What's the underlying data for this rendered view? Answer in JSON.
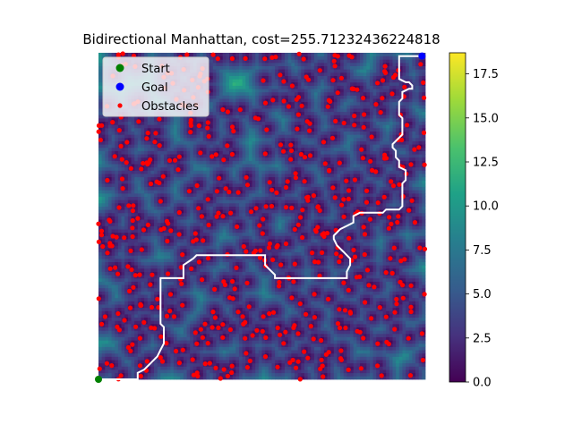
{
  "chart_data": {
    "type": "heatmap",
    "title": "Bidirectional Manhattan, cost=255.71232436224818",
    "xlabel": "",
    "ylabel": "",
    "grid": false,
    "legend_position": "top-left",
    "legend": [
      {
        "label": "Start",
        "color": "#008000",
        "marker": "circle"
      },
      {
        "label": "Goal",
        "color": "#0000ff",
        "marker": "circle"
      },
      {
        "label": "Obstacles",
        "color": "#ff0000",
        "marker": "small-circle"
      }
    ],
    "colorbar": {
      "colormap": "viridis",
      "range": [
        0.0,
        18.7
      ],
      "ticks": [
        0.0,
        2.5,
        5.0,
        7.5,
        10.0,
        12.5,
        15.0,
        17.5
      ],
      "tick_labels": [
        "0.0",
        "2.5",
        "5.0",
        "7.5",
        "10.0",
        "12.5",
        "15.0",
        "17.5"
      ]
    },
    "grid_size": [
      100,
      100
    ],
    "start": [
      0,
      0
    ],
    "goal": [
      99,
      99
    ],
    "path_color": "#ffffff",
    "path": [
      [
        0,
        0
      ],
      [
        12,
        0
      ],
      [
        12,
        2
      ],
      [
        14,
        3
      ],
      [
        16,
        5
      ],
      [
        18,
        7
      ],
      [
        19,
        9
      ],
      [
        20,
        11
      ],
      [
        20,
        16
      ],
      [
        19,
        17
      ],
      [
        19,
        31
      ],
      [
        26,
        31
      ],
      [
        26,
        35
      ],
      [
        29,
        37
      ],
      [
        30,
        38
      ],
      [
        51,
        38
      ],
      [
        51,
        35
      ],
      [
        53,
        33
      ],
      [
        54,
        32
      ],
      [
        54,
        31
      ],
      [
        76,
        31
      ],
      [
        76,
        33
      ],
      [
        77,
        35
      ],
      [
        77,
        37
      ],
      [
        76,
        38
      ],
      [
        75,
        39
      ],
      [
        73,
        41
      ],
      [
        72,
        43
      ],
      [
        72,
        44
      ],
      [
        73,
        45
      ],
      [
        74,
        46
      ],
      [
        76,
        47
      ],
      [
        78,
        48
      ],
      [
        78,
        50
      ],
      [
        80,
        51
      ],
      [
        81,
        51
      ],
      [
        87,
        51
      ],
      [
        88,
        52
      ],
      [
        92,
        52
      ],
      [
        93,
        53
      ],
      [
        93,
        60
      ],
      [
        94,
        61
      ],
      [
        94,
        64
      ],
      [
        92,
        65
      ],
      [
        92,
        67
      ],
      [
        91,
        68
      ],
      [
        91,
        70
      ],
      [
        90,
        71
      ],
      [
        90,
        72
      ],
      [
        91,
        73
      ],
      [
        92,
        74
      ],
      [
        93,
        75
      ],
      [
        93,
        80
      ],
      [
        92,
        81
      ],
      [
        92,
        85
      ],
      [
        93,
        86
      ],
      [
        93,
        88
      ],
      [
        95,
        89
      ],
      [
        96,
        89
      ],
      [
        96,
        90
      ],
      [
        95,
        91
      ],
      [
        94,
        91
      ],
      [
        92,
        92
      ],
      [
        92,
        96
      ],
      [
        92,
        99
      ],
      [
        93,
        99
      ],
      [
        99,
        99
      ]
    ],
    "obstacle_count": 560,
    "obstacle_seed": 7
  }
}
